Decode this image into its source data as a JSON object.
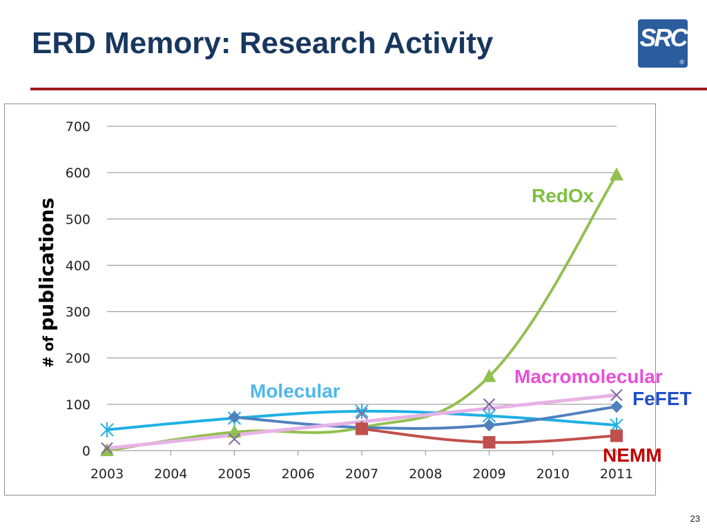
{
  "slide": {
    "title": "ERD Memory: Research Activity",
    "page_number": "23"
  },
  "logo": {
    "text": "SRC",
    "registered_mark": "®",
    "color": "#2b5c9e"
  },
  "colors": {
    "title": "#17375e",
    "rule": "#a0191e"
  },
  "chart_data": {
    "type": "line",
    "ylabel_prefix": "# of",
    "ylabel_main": "publications",
    "ylim": [
      0,
      700
    ],
    "yticks": [
      0,
      100,
      200,
      300,
      400,
      500,
      600,
      700
    ],
    "xticks": [
      "2003",
      "2004",
      "2005",
      "2006",
      "2007",
      "2008",
      "2009",
      "2010",
      "2011"
    ],
    "grid": "horizontal",
    "legend": "none",
    "series": [
      {
        "name": "Molecular",
        "color": "#1fb0e4",
        "label_color": "#4fb7ea",
        "marker": "asterisk",
        "points": [
          [
            2003,
            45
          ],
          [
            2005,
            70
          ],
          [
            2007,
            85
          ],
          [
            2009,
            75
          ],
          [
            2011,
            55
          ]
        ]
      },
      {
        "name": "RedOx",
        "color": "#92c050",
        "label_color": "#7fbf3f",
        "marker": "triangle",
        "points": [
          [
            2003,
            0
          ],
          [
            2005,
            40
          ],
          [
            2007,
            50
          ],
          [
            2009,
            160
          ],
          [
            2011,
            595
          ]
        ]
      },
      {
        "name": "Macromolecular",
        "color": "#e6b3e6",
        "label_color": "#e84fd8",
        "marker": "x",
        "points": [
          [
            2003,
            5
          ],
          [
            2005,
            25
          ],
          [
            2007,
            80
          ],
          [
            2009,
            100
          ],
          [
            2011,
            120
          ]
        ]
      },
      {
        "name": "FeFET",
        "color": "#4f81bd",
        "label_color": "#1f4ec8",
        "marker": "diamond",
        "points": [
          [
            2005,
            72
          ],
          [
            2007,
            50
          ],
          [
            2009,
            55
          ],
          [
            2011,
            95
          ]
        ]
      },
      {
        "name": "NEMM",
        "color": "#c0504d",
        "label_color": "#c00000",
        "marker": "square",
        "points": [
          [
            2007,
            47
          ],
          [
            2009,
            18
          ],
          [
            2011,
            32
          ]
        ]
      }
    ]
  }
}
